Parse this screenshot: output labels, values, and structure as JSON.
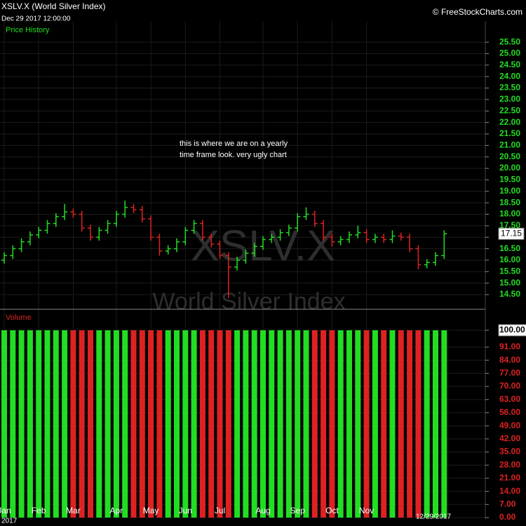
{
  "chart_data": {
    "type": "ohlc",
    "title": "XSLV.X (World Silver Index)",
    "subtitle": "Dec 29 2017 12:00:00",
    "brand": "© FreeStockCharts.com",
    "panel_label": "Price History",
    "watermark": "XSLV.X",
    "watermark_name": "World Silver Index",
    "annotation": [
      "this is where we are on a yearly",
      "time frame look. very ugly chart"
    ],
    "end_date": "12/29/2017",
    "year": "2017",
    "up_color": "#22dd22",
    "down_color": "#dd2222",
    "categories": [
      "Jan",
      null,
      null,
      null,
      "Feb",
      null,
      null,
      null,
      "Mar",
      null,
      null,
      null,
      null,
      "Apr",
      null,
      null,
      null,
      "May",
      null,
      null,
      null,
      "Jun",
      null,
      null,
      null,
      "Jul",
      null,
      null,
      null,
      null,
      "Aug",
      null,
      null,
      null,
      "Sep",
      null,
      null,
      null,
      "Oct",
      null,
      null,
      null,
      "Nov",
      null,
      null,
      null,
      null,
      null,
      null,
      null,
      null,
      null
    ],
    "open": [
      16.0,
      16.2,
      16.5,
      16.8,
      17.1,
      17.3,
      17.6,
      17.9,
      18.1,
      18.0,
      17.4,
      17.0,
      17.3,
      17.6,
      18.0,
      18.3,
      18.2,
      17.8,
      17.0,
      16.4,
      16.5,
      16.8,
      17.3,
      17.6,
      17.0,
      16.7,
      16.2,
      15.7,
      16.0,
      16.3,
      16.6,
      16.9,
      17.0,
      17.2,
      17.4,
      17.9,
      18.0,
      17.6,
      17.0,
      16.8,
      16.9,
      17.1,
      17.2,
      16.9,
      17.0,
      16.9,
      17.05,
      17.0,
      16.5,
      15.8,
      15.9,
      16.2
    ],
    "high": [
      16.35,
      16.65,
      16.95,
      17.25,
      17.45,
      17.75,
      18.05,
      18.45,
      18.25,
      18.15,
      17.55,
      17.45,
      17.75,
      18.15,
      18.6,
      18.45,
      18.35,
      17.95,
      17.15,
      16.65,
      16.95,
      17.45,
      17.75,
      17.75,
      17.15,
      16.85,
      16.35,
      16.15,
      16.45,
      16.75,
      17.05,
      17.15,
      17.35,
      17.55,
      18.05,
      18.3,
      18.15,
      17.75,
      17.15,
      17.05,
      17.25,
      17.5,
      17.35,
      17.15,
      17.15,
      17.3,
      17.2,
      17.15,
      16.65,
      16.05,
      16.35,
      17.3
    ],
    "low": [
      15.85,
      16.05,
      16.35,
      16.65,
      16.95,
      17.15,
      17.45,
      17.75,
      17.85,
      17.25,
      16.85,
      16.85,
      17.15,
      17.45,
      17.85,
      18.05,
      17.65,
      16.85,
      16.2,
      16.25,
      16.35,
      16.65,
      17.15,
      16.85,
      16.55,
      16.05,
      14.35,
      15.55,
      15.85,
      16.15,
      16.45,
      16.75,
      16.85,
      17.05,
      17.25,
      17.75,
      17.45,
      16.85,
      16.6,
      16.65,
      16.75,
      16.95,
      16.75,
      16.75,
      16.75,
      16.75,
      16.85,
      16.35,
      15.6,
      15.65,
      15.75,
      16.05
    ],
    "close": [
      16.2,
      16.5,
      16.8,
      17.1,
      17.3,
      17.6,
      17.9,
      18.1,
      18.0,
      17.4,
      17.0,
      17.3,
      17.6,
      18.0,
      18.3,
      18.2,
      17.8,
      17.0,
      16.4,
      16.5,
      16.8,
      17.3,
      17.6,
      17.0,
      16.7,
      16.2,
      15.7,
      16.0,
      16.3,
      16.6,
      16.9,
      17.0,
      17.2,
      17.4,
      17.9,
      18.0,
      17.6,
      17.0,
      16.8,
      16.9,
      17.1,
      17.2,
      16.9,
      17.0,
      16.9,
      17.05,
      17.0,
      16.5,
      15.8,
      15.9,
      16.2,
      17.15
    ],
    "ylim": [
      13.89,
      26.42
    ],
    "yticks": [
      {
        "value": 14.5,
        "label": "14.50"
      },
      {
        "value": 15,
        "label": "15.00"
      },
      {
        "value": 15.5,
        "label": "15.50"
      },
      {
        "value": 16,
        "label": "16.00"
      },
      {
        "value": 16.5,
        "label": "16.50"
      },
      {
        "value": 17,
        "label": "17.00"
      },
      {
        "value": 17.5,
        "label": "17.50"
      },
      {
        "value": 18,
        "label": "18.00"
      },
      {
        "value": 18.5,
        "label": "18.50"
      },
      {
        "value": 19,
        "label": "19.00"
      },
      {
        "value": 19.5,
        "label": "19.50"
      },
      {
        "value": 20,
        "label": "20.00"
      },
      {
        "value": 20.5,
        "label": "20.50"
      },
      {
        "value": 21,
        "label": "21.00"
      },
      {
        "value": 21.5,
        "label": "21.50"
      },
      {
        "value": 22,
        "label": "22.00"
      },
      {
        "value": 22.5,
        "label": "22.50"
      },
      {
        "value": 23,
        "label": "23.00"
      },
      {
        "value": 23.5,
        "label": "23.50"
      },
      {
        "value": 24,
        "label": "24.00"
      },
      {
        "value": 24.5,
        "label": "24.50"
      },
      {
        "value": 25,
        "label": "25.00"
      },
      {
        "value": 25.5,
        "label": "25.50"
      }
    ],
    "grid": true,
    "volume": {
      "label": "Volume",
      "values": [
        100,
        100,
        100,
        100,
        100,
        100,
        100,
        100,
        100,
        100,
        100,
        100,
        100,
        100,
        100,
        100,
        100,
        100,
        100,
        100,
        100,
        100,
        100,
        100,
        100,
        100,
        100,
        100,
        100,
        100,
        100,
        100,
        100,
        100,
        100,
        100,
        100,
        100,
        100,
        100,
        100,
        100,
        100,
        100,
        100,
        100,
        100,
        100,
        100,
        100,
        100,
        100
      ],
      "ylim": [
        0,
        109.7
      ],
      "yticks": [
        {
          "value": 0,
          "label": "0.00"
        },
        {
          "value": 7,
          "label": "7.00"
        },
        {
          "value": 14,
          "label": "14.00"
        },
        {
          "value": 21,
          "label": "21.00"
        },
        {
          "value": 28,
          "label": "28.00"
        },
        {
          "value": 35,
          "label": "35.00"
        },
        {
          "value": 42,
          "label": "42.00"
        },
        {
          "value": 49,
          "label": "49.00"
        },
        {
          "value": 56,
          "label": "56.00"
        },
        {
          "value": 63,
          "label": "63.00"
        },
        {
          "value": 70,
          "label": "70.00"
        },
        {
          "value": 77,
          "label": "77.00"
        },
        {
          "value": 84,
          "label": "84.00"
        },
        {
          "value": 91,
          "label": "91.00"
        },
        {
          "value": 100,
          "label": "100.00"
        }
      ]
    }
  }
}
